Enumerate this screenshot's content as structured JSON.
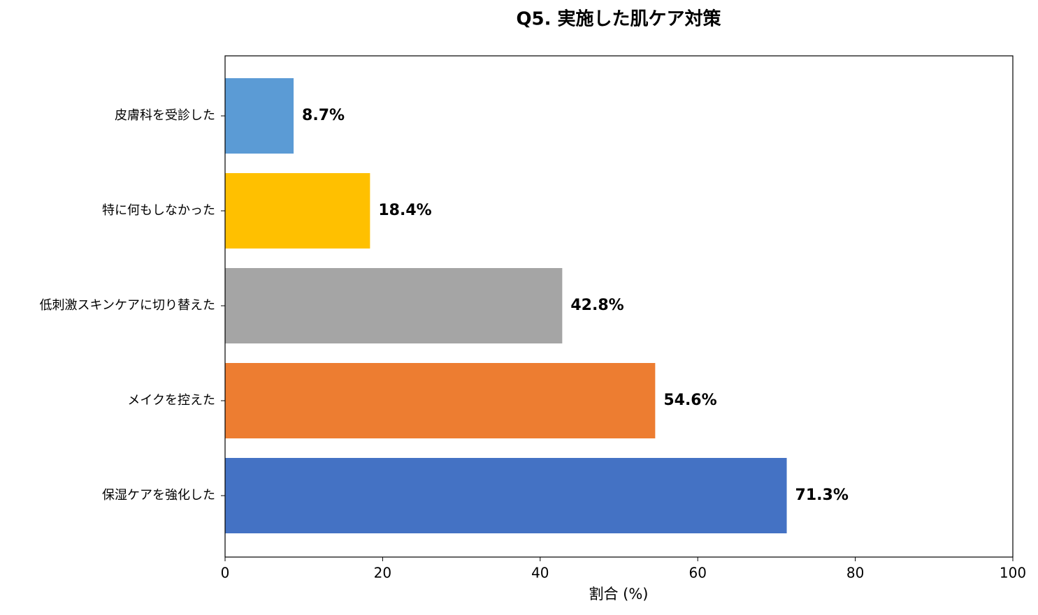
{
  "chart_data": {
    "type": "barh",
    "title": "Q5. 実施した肌ケア対策",
    "xlabel": "割合 (%)",
    "categories": [
      "保湿ケアを強化した",
      "メイクを控えた",
      "低刺激スキンケアに切り替えた",
      "特に何もしなかった",
      "皮膚科を受診した"
    ],
    "values": [
      71.3,
      54.6,
      42.8,
      18.4,
      8.7
    ],
    "value_labels": [
      "71.3%",
      "54.6%",
      "42.8%",
      "18.4%",
      "8.7%"
    ],
    "colors": [
      "#4472c4",
      "#ed7d31",
      "#a5a5a5",
      "#ffc000",
      "#5b9bd5"
    ],
    "xlim": [
      0,
      100
    ],
    "xticks": [
      0,
      20,
      40,
      60,
      80,
      100
    ]
  }
}
